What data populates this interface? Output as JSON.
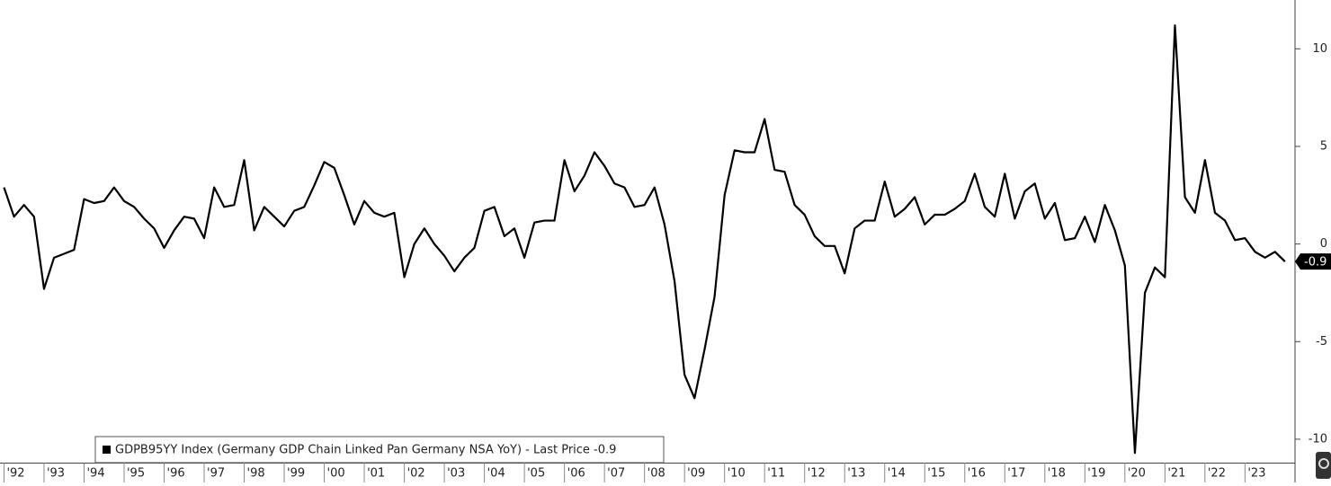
{
  "chart_data": {
    "type": "line",
    "x": [
      1992,
      1992.25,
      1992.5,
      1992.75,
      1993,
      1993.25,
      1993.5,
      1993.75,
      1994,
      1994.25,
      1994.5,
      1994.75,
      1995,
      1995.25,
      1995.5,
      1995.75,
      1996,
      1996.25,
      1996.5,
      1996.75,
      1997,
      1997.25,
      1997.5,
      1997.75,
      1998,
      1998.25,
      1998.5,
      1998.75,
      1999,
      1999.25,
      1999.5,
      1999.75,
      2000,
      2000.25,
      2000.5,
      2000.75,
      2001,
      2001.25,
      2001.5,
      2001.75,
      2002,
      2002.25,
      2002.5,
      2002.75,
      2003,
      2003.25,
      2003.5,
      2003.75,
      2004,
      2004.25,
      2004.5,
      2004.75,
      2005,
      2005.25,
      2005.5,
      2005.75,
      2006,
      2006.25,
      2006.5,
      2006.75,
      2007,
      2007.25,
      2007.5,
      2007.75,
      2008,
      2008.25,
      2008.5,
      2008.75,
      2009,
      2009.25,
      2009.5,
      2009.75,
      2010,
      2010.25,
      2010.5,
      2010.75,
      2011,
      2011.25,
      2011.5,
      2011.75,
      2012,
      2012.25,
      2012.5,
      2012.75,
      2013,
      2013.25,
      2013.5,
      2013.75,
      2014,
      2014.25,
      2014.5,
      2014.75,
      2015,
      2015.25,
      2015.5,
      2015.75,
      2016,
      2016.25,
      2016.5,
      2016.75,
      2017,
      2017.25,
      2017.5,
      2017.75,
      2018,
      2018.25,
      2018.5,
      2018.75,
      2019,
      2019.25,
      2019.5,
      2019.75,
      2020,
      2020.25,
      2020.5,
      2020.75,
      2021,
      2021.25,
      2021.5,
      2021.75,
      2022,
      2022.25,
      2022.5,
      2022.75,
      2023,
      2023.25,
      2023.5,
      2023.75,
      2024
    ],
    "series": [
      {
        "name": "GDPB95YY Index (Germany GDP Chain Linked Pan Germany NSA YoY) - Last Price -0.9",
        "color": "#000000",
        "values": [
          2.9,
          1.4,
          2.0,
          1.4,
          -2.3,
          -0.7,
          -0.5,
          -0.3,
          2.3,
          2.1,
          2.2,
          2.9,
          2.2,
          1.9,
          1.3,
          0.8,
          -0.2,
          0.7,
          1.4,
          1.3,
          0.3,
          2.9,
          1.9,
          2.0,
          4.3,
          0.7,
          1.9,
          1.4,
          0.9,
          1.7,
          1.9,
          3.0,
          4.2,
          3.9,
          2.5,
          1.0,
          2.2,
          1.6,
          1.4,
          1.6,
          -1.7,
          0.0,
          0.8,
          0.0,
          -0.6,
          -1.4,
          -0.7,
          -0.2,
          1.7,
          1.9,
          0.4,
          0.8,
          -0.7,
          1.1,
          1.2,
          1.2,
          4.3,
          2.7,
          3.5,
          4.7,
          4.0,
          3.1,
          2.9,
          1.9,
          2.0,
          2.9,
          1.0,
          -1.9,
          -6.7,
          -7.9,
          -5.4,
          -2.7,
          2.5,
          4.8,
          4.7,
          4.7,
          6.4,
          3.8,
          3.7,
          2.0,
          1.5,
          0.4,
          -0.1,
          -0.1,
          -1.5,
          0.8,
          1.2,
          1.2,
          3.2,
          1.4,
          1.8,
          2.4,
          1.0,
          1.5,
          1.5,
          1.8,
          2.2,
          3.6,
          1.9,
          1.4,
          3.6,
          1.3,
          2.7,
          3.1,
          1.3,
          2.1,
          0.2,
          0.3,
          1.4,
          0.1,
          2.0,
          0.7,
          -1.1,
          -10.7,
          -2.5,
          -1.2,
          -1.7,
          11.2,
          2.4,
          1.6,
          4.3,
          1.6,
          1.2,
          0.2,
          0.3,
          -0.4,
          -0.7,
          -0.4,
          -0.9
        ]
      }
    ],
    "xlim": [
      1991.9,
      2024.25
    ],
    "xticks": [
      {
        "value": 1992,
        "label": "'92"
      },
      {
        "value": 1993,
        "label": "'93"
      },
      {
        "value": 1994,
        "label": "'94"
      },
      {
        "value": 1995,
        "label": "'95"
      },
      {
        "value": 1996,
        "label": "'96"
      },
      {
        "value": 1997,
        "label": "'97"
      },
      {
        "value": 1998,
        "label": "'98"
      },
      {
        "value": 1999,
        "label": "'99"
      },
      {
        "value": 2000,
        "label": "'00"
      },
      {
        "value": 2001,
        "label": "'01"
      },
      {
        "value": 2002,
        "label": "'02"
      },
      {
        "value": 2003,
        "label": "'03"
      },
      {
        "value": 2004,
        "label": "'04"
      },
      {
        "value": 2005,
        "label": "'05"
      },
      {
        "value": 2006,
        "label": "'06"
      },
      {
        "value": 2007,
        "label": "'07"
      },
      {
        "value": 2008,
        "label": "'08"
      },
      {
        "value": 2009,
        "label": "'09"
      },
      {
        "value": 2010,
        "label": "'10"
      },
      {
        "value": 2011,
        "label": "'11"
      },
      {
        "value": 2012,
        "label": "'12"
      },
      {
        "value": 2013,
        "label": "'13"
      },
      {
        "value": 2014,
        "label": "'14"
      },
      {
        "value": 2015,
        "label": "'15"
      },
      {
        "value": 2016,
        "label": "'16"
      },
      {
        "value": 2017,
        "label": "'17"
      },
      {
        "value": 2018,
        "label": "'18"
      },
      {
        "value": 2019,
        "label": "'19"
      },
      {
        "value": 2020,
        "label": "'20"
      },
      {
        "value": 2021,
        "label": "'21"
      },
      {
        "value": 2022,
        "label": "'22"
      },
      {
        "value": 2023,
        "label": "'23"
      }
    ],
    "ylim": [
      -11.2,
      12.5
    ],
    "yticks": [
      -10,
      -5,
      0,
      5,
      10
    ]
  }
}
